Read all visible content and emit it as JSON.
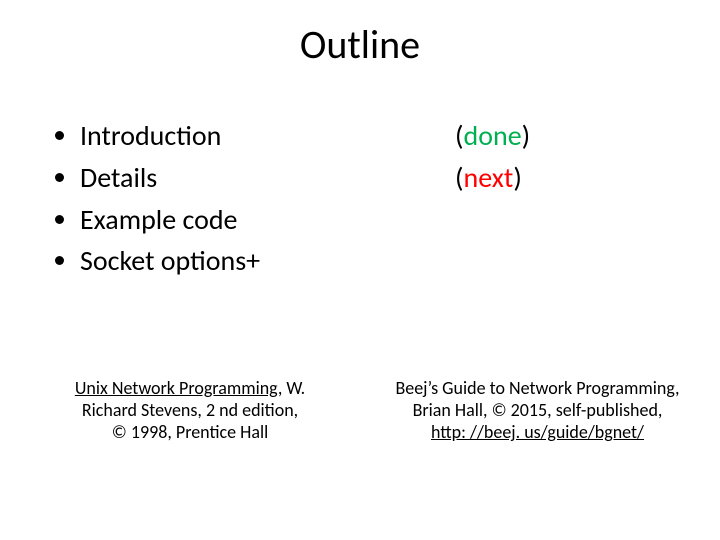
{
  "title": "Outline",
  "bullets": [
    {
      "label": "Introduction"
    },
    {
      "label": "Details"
    },
    {
      "label": "Example code"
    },
    {
      "label": "Socket options+"
    }
  ],
  "status": [
    {
      "open": "(",
      "word": "done",
      "close": ")",
      "color": "#00b050"
    },
    {
      "open": "(",
      "word": "next",
      "close": ")",
      "color": "#ff0000"
    }
  ],
  "ref_left": {
    "line1": "Unix Network Programming",
    "line1_suffix": ", W.",
    "line2": "Richard Stevens, 2 nd edition,",
    "line3": "© 1998, Prentice Hall"
  },
  "ref_right": {
    "line1": "Beej’s Guide to Network Programming,",
    "line2": "Brian Hall, © 2015, self-published,",
    "link": "http: //beej. us/guide/bgnet/"
  },
  "colors": {
    "text": "#000000",
    "background": "#ffffff"
  },
  "typography": {
    "title_fontsize": 40,
    "body_fontsize": 28,
    "ref_fontsize": 18,
    "font_family": "Calibri"
  }
}
